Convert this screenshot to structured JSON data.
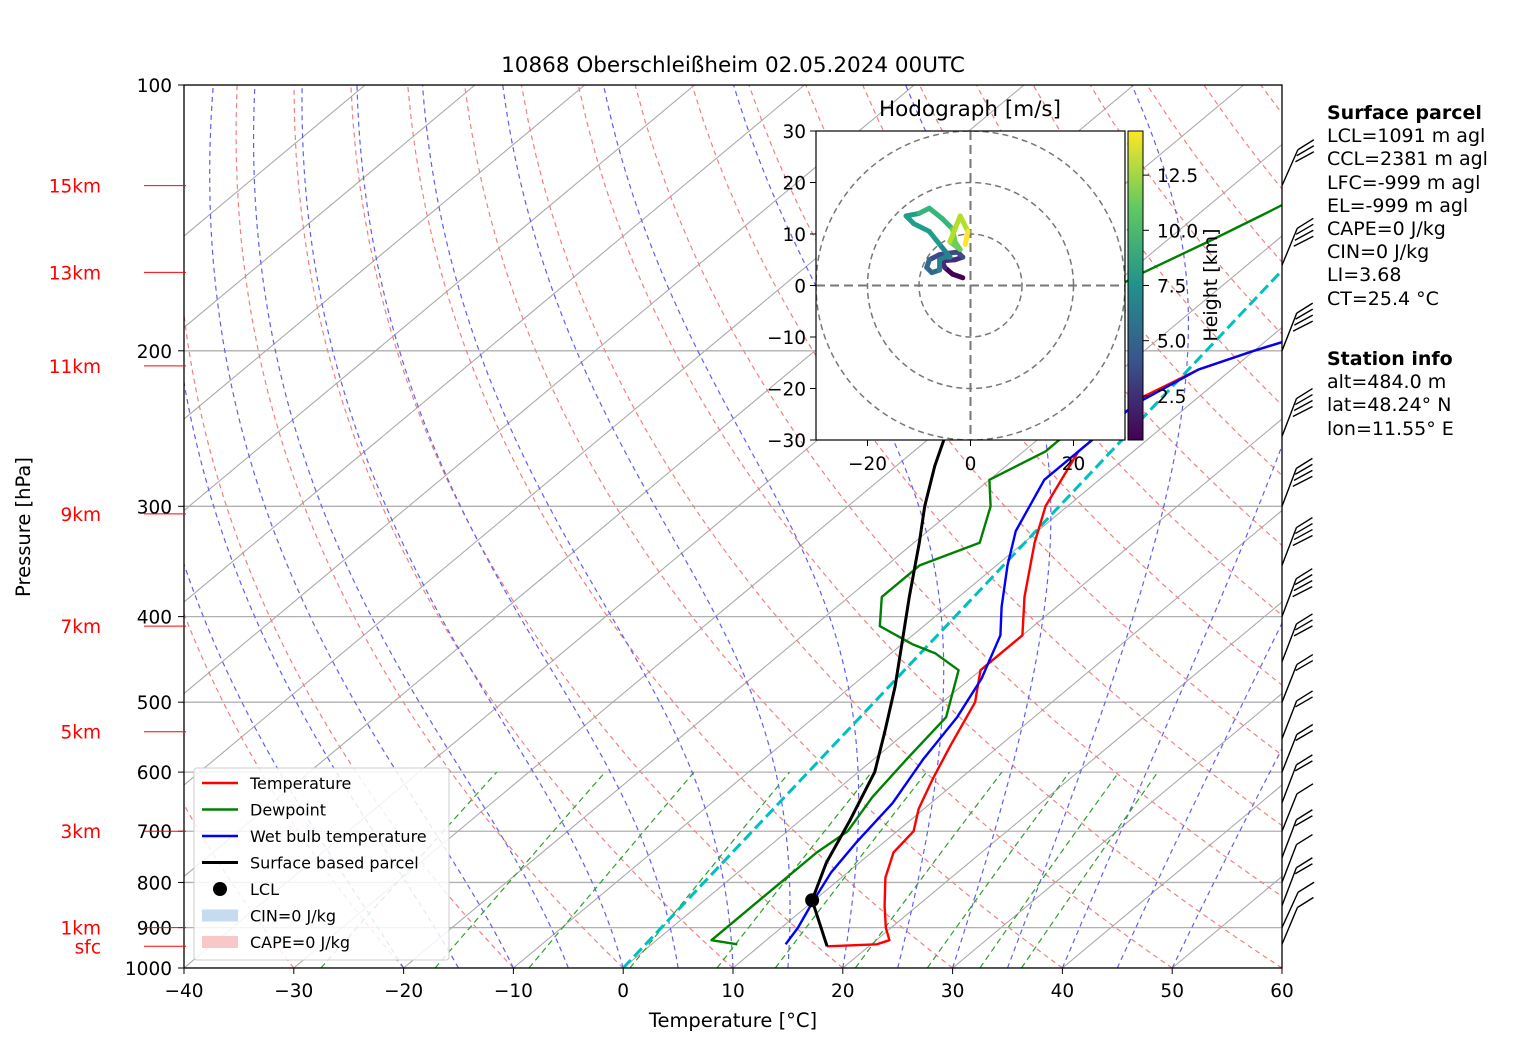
{
  "chart_data": {
    "type": "line",
    "title": "10868 Oberschleißheim 02.05.2024 00UTC",
    "xlabel": "Temperature [°C]",
    "ylabel": "Pressure [hPa]",
    "xlim": [
      -40,
      60
    ],
    "ylim": [
      1000,
      100
    ],
    "y_scale": "log",
    "grid": true,
    "x_ticks": [
      "−40",
      "−30",
      "−20",
      "−10",
      "0",
      "10",
      "20",
      "30",
      "40",
      "50",
      "60"
    ],
    "x_tick_values": [
      -40,
      -30,
      -20,
      -10,
      0,
      10,
      20,
      30,
      40,
      50,
      60
    ],
    "y_ticks": [
      "100",
      "200",
      "300",
      "400",
      "500",
      "600",
      "700",
      "800",
      "900",
      "1000"
    ],
    "y_tick_values": [
      100,
      200,
      300,
      400,
      500,
      600,
      700,
      800,
      900,
      1000
    ],
    "height_labels": [
      {
        "label": "15km",
        "p": 130
      },
      {
        "label": "13km",
        "p": 163
      },
      {
        "label": "11km",
        "p": 208
      },
      {
        "label": "9km",
        "p": 306
      },
      {
        "label": "7km",
        "p": 410
      },
      {
        "label": "5km",
        "p": 540
      },
      {
        "label": "3km",
        "p": 700
      },
      {
        "label": "1km",
        "p": 900
      },
      {
        "label": "sfc",
        "p": 945
      }
    ],
    "legend_position": "lower-left",
    "legend": [
      {
        "label": "Temperature",
        "color": "#ff0000",
        "kind": "line"
      },
      {
        "label": "Dewpoint",
        "color": "#008000",
        "kind": "line"
      },
      {
        "label": "Wet bulb temperature",
        "color": "#0000ff",
        "kind": "line"
      },
      {
        "label": "Surface based parcel",
        "color": "#000000",
        "kind": "line"
      },
      {
        "label": "LCL",
        "color": "#000000",
        "kind": "dot"
      },
      {
        "label": "CIN=0 J/kg",
        "color": "#c6dbef",
        "kind": "patch"
      },
      {
        "label": "CAPE=0 J/kg",
        "color": "#f8c8c8",
        "kind": "patch"
      }
    ],
    "series": [
      {
        "name": "Temperature",
        "color": "#ff0000",
        "points": [
          [
            16.2,
            945
          ],
          [
            20.5,
            940
          ],
          [
            21.2,
            930
          ],
          [
            19.5,
            900
          ],
          [
            17,
            850
          ],
          [
            14,
            790
          ],
          [
            12,
            740
          ],
          [
            11.5,
            700
          ],
          [
            9.5,
            660
          ],
          [
            7.5,
            610
          ],
          [
            5.5,
            560
          ],
          [
            3,
            500
          ],
          [
            0,
            460
          ],
          [
            0,
            420
          ],
          [
            -4,
            380
          ],
          [
            -9,
            330
          ],
          [
            -12,
            300
          ],
          [
            -15,
            260
          ],
          [
            -15,
            240
          ],
          [
            -15,
            225
          ],
          [
            -13,
            210
          ],
          [
            -10,
            200
          ],
          [
            -4.5,
            185
          ],
          [
            -2,
            170
          ],
          [
            0.5,
            155
          ],
          [
            5.5,
            140
          ],
          [
            8,
            130
          ],
          [
            11,
            125
          ],
          [
            14.5,
            122
          ]
        ]
      },
      {
        "name": "Dewpoint",
        "color": "#008000",
        "points": [
          [
            7.8,
            940
          ],
          [
            5,
            930
          ],
          [
            5,
            870
          ],
          [
            5,
            800
          ],
          [
            5,
            740
          ],
          [
            5.5,
            700
          ],
          [
            4,
            640
          ],
          [
            3,
            580
          ],
          [
            2,
            520
          ],
          [
            -2,
            460
          ],
          [
            -6,
            440
          ],
          [
            -9,
            430
          ],
          [
            -14,
            410
          ],
          [
            -17,
            380
          ],
          [
            -17,
            350
          ],
          [
            -14,
            330
          ],
          [
            -17,
            300
          ],
          [
            -20,
            280
          ],
          [
            -18,
            260
          ],
          [
            -18,
            240
          ],
          [
            -23,
            230
          ],
          [
            -25,
            220
          ],
          [
            -27,
            205
          ],
          [
            -30,
            195
          ],
          [
            -31,
            185
          ],
          [
            -30,
            175
          ],
          [
            -29,
            165
          ],
          [
            -26,
            150
          ],
          [
            -24,
            140
          ],
          [
            -22,
            130
          ],
          [
            -20.5,
            124
          ]
        ]
      },
      {
        "name": "Wet bulb temperature",
        "color": "#0000ff",
        "points": [
          [
            12.2,
            940
          ],
          [
            11.5,
            900
          ],
          [
            10,
            840
          ],
          [
            8.5,
            780
          ],
          [
            7.5,
            720
          ],
          [
            6.5,
            650
          ],
          [
            4.5,
            580
          ],
          [
            3,
            520
          ],
          [
            1,
            470
          ],
          [
            -2,
            420
          ],
          [
            -5,
            390
          ],
          [
            -9,
            350
          ],
          [
            -12,
            320
          ],
          [
            -15,
            280
          ],
          [
            -15,
            250
          ],
          [
            -15,
            230
          ],
          [
            -13,
            210
          ],
          [
            -10,
            200
          ],
          [
            -4.5,
            185
          ],
          [
            -2,
            170
          ],
          [
            0.5,
            155
          ],
          [
            5,
            140
          ],
          [
            8,
            130
          ],
          [
            11,
            125
          ],
          [
            13.5,
            122
          ]
        ]
      },
      {
        "name": "Surface based parcel",
        "color": "#000000",
        "points": [
          [
            16.2,
            945
          ],
          [
            9.8,
            838
          ],
          [
            7,
            760
          ],
          [
            4.5,
            680
          ],
          [
            1.5,
            600
          ],
          [
            -2,
            540
          ],
          [
            -6,
            480
          ],
          [
            -10,
            430
          ],
          [
            -14.5,
            380
          ],
          [
            -19.5,
            330
          ],
          [
            -23,
            300
          ],
          [
            -26.5,
            270
          ],
          [
            -30,
            240
          ],
          [
            -33,
            215
          ],
          [
            -36,
            190
          ],
          [
            -38,
            172
          ],
          [
            -40,
            160
          ]
        ]
      }
    ],
    "lcl": {
      "label": "LCL",
      "t": 9.8,
      "p": 838
    },
    "isotherm_zero_line": {
      "color": "#00bfbf",
      "from": [
        0,
        1000
      ],
      "to": [
        60,
        150
      ]
    },
    "hodograph": {
      "title": "Hodograph [m/s]",
      "xlim": [
        -30,
        30
      ],
      "ylim": [
        -30,
        30
      ],
      "x_ticks": [
        "−20",
        "0",
        "20"
      ],
      "y_ticks": [
        "30",
        "20",
        "10",
        "0",
        "−10",
        "−20",
        "−30"
      ],
      "rings": [
        10,
        20,
        30
      ],
      "colorbar_label": "Height [km]",
      "colorbar_ticks": [
        "2.5",
        "5.0",
        "7.5",
        "10.0",
        "12.5"
      ],
      "colorbar_values": [
        2.5,
        5.0,
        7.5,
        10.0,
        12.5
      ],
      "colorbar_range": [
        0.5,
        14.5
      ],
      "points": [
        [
          -1.5,
          1.5,
          0.5
        ],
        [
          -3.5,
          2.2,
          1
        ],
        [
          -5,
          3.5,
          1.5
        ],
        [
          -5.5,
          4.8,
          2
        ],
        [
          -3,
          5,
          2.5
        ],
        [
          -1.5,
          5.5,
          3
        ],
        [
          -2.5,
          6.5,
          3.5
        ],
        [
          -6,
          6,
          4
        ],
        [
          -8,
          5,
          4.5
        ],
        [
          -8.5,
          3.5,
          5
        ],
        [
          -7.5,
          2.5,
          5.5
        ],
        [
          -6,
          3,
          6
        ],
        [
          -6,
          5,
          6.5
        ],
        [
          -5,
          5.5,
          7
        ],
        [
          -4,
          5.5,
          7
        ],
        [
          -6,
          8,
          7.5
        ],
        [
          -8,
          10.5,
          8
        ],
        [
          -11,
          12,
          8.5
        ],
        [
          -12.5,
          13.5,
          9
        ],
        [
          -10,
          14,
          9.5
        ],
        [
          -8,
          15,
          10
        ],
        [
          -5.5,
          13,
          10.5
        ],
        [
          -3.5,
          11,
          11
        ],
        [
          -3,
          8.5,
          11.5
        ],
        [
          -2,
          7,
          12
        ],
        [
          -4,
          8.5,
          12.5
        ],
        [
          -3,
          11,
          13
        ],
        [
          -2,
          13.5,
          13.5
        ],
        [
          -0.5,
          10.5,
          14
        ],
        [
          -1,
          8,
          14.5
        ]
      ]
    },
    "wind_barbs": [
      {
        "p": 130,
        "u": -10,
        "v": -30
      },
      {
        "p": 160,
        "u": -8,
        "v": -35
      },
      {
        "p": 200,
        "u": -5,
        "v": -40
      },
      {
        "p": 250,
        "u": -4,
        "v": -45
      },
      {
        "p": 300,
        "u": -3,
        "v": -45
      },
      {
        "p": 350,
        "u": -5,
        "v": -60
      },
      {
        "p": 400,
        "u": -2,
        "v": -45
      },
      {
        "p": 450,
        "u": 2,
        "v": -25
      },
      {
        "p": 500,
        "u": 3,
        "v": -22
      },
      {
        "p": 550,
        "u": 2,
        "v": -20
      },
      {
        "p": 600,
        "u": 2,
        "v": -15
      },
      {
        "p": 650,
        "u": 1,
        "v": -15
      },
      {
        "p": 700,
        "u": 2,
        "v": -12
      },
      {
        "p": 750,
        "u": 1,
        "v": -15
      },
      {
        "p": 800,
        "u": 1,
        "v": -12
      },
      {
        "p": 850,
        "u": 1,
        "v": -15
      },
      {
        "p": 900,
        "u": 3,
        "v": -8
      },
      {
        "p": 940,
        "u": 2,
        "v": -8
      }
    ]
  },
  "surface_parcel": {
    "title": "Surface parcel",
    "lines": [
      "LCL=1091 m agl",
      "CCL=2381 m agl",
      "LFC=-999 m agl",
      "EL=-999 m agl",
      "CAPE=0 J/kg",
      "CIN=0 J/kg",
      "LI=3.68",
      "CT=25.4 °C"
    ]
  },
  "station_info": {
    "title": "Station info",
    "lines": [
      "alt=484.0 m",
      "lat=48.24° N",
      "lon=11.55° E"
    ]
  }
}
